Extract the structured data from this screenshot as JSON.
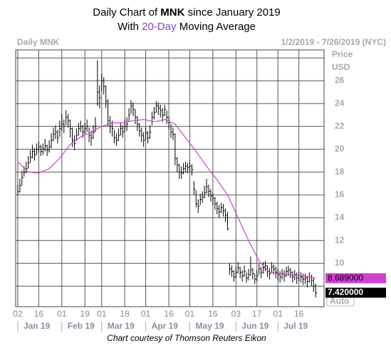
{
  "chart_data": {
    "type": "ohlc",
    "title_parts": [
      "Daily Chart of",
      "MNK",
      "since January 2019"
    ],
    "subtitle_parts": [
      "With",
      "20-Day",
      "Moving Average"
    ],
    "chart_label": "Daily MNK",
    "date_range": "1/2/2019 - 7/26/2019 (NYC)",
    "y_label": [
      "Price",
      "USD"
    ],
    "scale_mode": "Auto",
    "source": "Chart courtesy of Thomson Reuters Eikon",
    "grid": true,
    "xlim": [
      -1,
      146
    ],
    "ylim": [
      6.2,
      28.7
    ],
    "xticks": [
      {
        "value": 0,
        "label": "02"
      },
      {
        "value": 10,
        "label": "16"
      },
      {
        "value": 21,
        "label": "01"
      },
      {
        "value": 32,
        "label": "19"
      },
      {
        "value": 40,
        "label": "01"
      },
      {
        "value": 51,
        "label": "18"
      },
      {
        "value": 61,
        "label": "01"
      },
      {
        "value": 72,
        "label": "16"
      },
      {
        "value": 82,
        "label": "01"
      },
      {
        "value": 93,
        "label": "16"
      },
      {
        "value": 104,
        "label": "03"
      },
      {
        "value": 114,
        "label": "17"
      },
      {
        "value": 124,
        "label": "01"
      },
      {
        "value": 134,
        "label": "16"
      }
    ],
    "month_labels": [
      {
        "value": 0,
        "label": "Jan 19"
      },
      {
        "value": 21,
        "label": "Feb 19"
      },
      {
        "value": 40,
        "label": "Mar 19"
      },
      {
        "value": 61,
        "label": "Apr 19"
      },
      {
        "value": 82,
        "label": "May 19"
      },
      {
        "value": 104,
        "label": "Jun 19"
      },
      {
        "value": 124,
        "label": "Jul 19"
      }
    ],
    "yticks": [
      {
        "value": 8,
        "label": null
      },
      10,
      12,
      14,
      16,
      18,
      20,
      22,
      24,
      26,
      {
        "value": 28,
        "label": null
      }
    ],
    "series": [
      {
        "color": "#000000",
        "close": [
          16.3,
          16.8,
          17.5,
          18,
          18.3,
          18.8,
          19.3,
          19.8,
          19.5,
          20,
          20.2,
          19.8,
          20,
          20.3,
          19.9,
          20.2,
          20.8,
          21.3,
          21.5,
          21,
          21.8,
          22.2,
          22,
          22.8,
          22.5,
          21.8,
          20.8,
          20.5,
          21.2,
          21.8,
          22,
          21.5,
          21.8,
          22,
          21.2,
          21,
          21.5,
          22,
          25,
          24.5,
          26,
          25.5,
          24.2,
          22.5,
          22,
          21.8,
          21,
          20.8,
          21.2,
          21.8,
          21.5,
          22,
          22.2,
          23,
          23.8,
          23.5,
          22.8,
          22.2,
          21.6,
          21.2,
          20.8,
          21.4,
          21,
          21.5,
          22.8,
          23.2,
          23.8,
          23.6,
          23.4,
          23,
          23.5,
          22.8,
          22.3,
          21.5,
          21.3,
          19.2,
          18.6,
          18,
          17.9,
          18.3,
          18.5,
          18.4,
          18.5,
          18.2,
          16.5,
          15.2,
          15,
          15.6,
          15.8,
          16.2,
          16.7,
          16.3,
          15.9,
          15.7,
          15.2,
          14.8,
          14.5,
          14.9,
          14.6,
          14.2,
          13,
          9.5,
          9.3,
          8.8,
          9.2,
          9.6,
          9.2,
          8.9,
          9.3,
          8.7,
          9.0,
          9.4,
          9.1,
          8.6,
          8.9,
          9.5,
          9.2,
          9.6,
          9.8,
          9.3,
          9.1,
          9.7,
          9.5,
          9.2,
          9.0,
          8.8,
          9.1,
          8.9,
          9.3,
          9.4,
          9.2,
          8.8,
          9.0,
          8.7,
          8.9,
          8.8,
          8.6,
          8.7,
          8.4,
          8.8,
          8.5,
          8.0,
          7.42
        ],
        "high": [
          16.9,
          17.4,
          18.1,
          18.5,
          18.9,
          19.4,
          19.9,
          20.4,
          20.1,
          20.5,
          20.7,
          20.4,
          20.5,
          20.9,
          20.4,
          20.8,
          21.4,
          21.9,
          22.1,
          21.7,
          22.5,
          23.1,
          22.6,
          23.4,
          23.1,
          22.6,
          21.9,
          21.2,
          21.8,
          22.3,
          22.5,
          22.1,
          22.3,
          22.6,
          21.9,
          21.6,
          22.1,
          22.8,
          27.8,
          25.6,
          26.6,
          26.3,
          25.6,
          24.4,
          22.9,
          22.5,
          21.7,
          21.4,
          21.8,
          22.3,
          22.1,
          22.6,
          22.8,
          23.6,
          24.3,
          24.1,
          23.5,
          22.9,
          22.3,
          21.9,
          21.5,
          21.9,
          21.6,
          22.1,
          23.3,
          23.7,
          24.2,
          24.1,
          23.9,
          23.6,
          23.9,
          23.4,
          22.9,
          22.2,
          21.9,
          21.4,
          19.3,
          18.7,
          18.5,
          18.8,
          18.9,
          18.8,
          18.9,
          18.7,
          17.2,
          16.4,
          15.6,
          16.1,
          16.3,
          16.8,
          17.4,
          16.9,
          16.5,
          16.2,
          15.8,
          15.4,
          15.1,
          15.3,
          15.2,
          14.8,
          14.5,
          10.0,
          9.8,
          9.4,
          9.7,
          10.1,
          9.7,
          9.4,
          9.8,
          9.2,
          9.5,
          10.6,
          9.6,
          9.1,
          9.4,
          10.0,
          9.7,
          10.1,
          10.2,
          9.8,
          9.6,
          10.1,
          9.9,
          9.7,
          9.5,
          9.3,
          9.5,
          9.4,
          9.7,
          9.8,
          9.6,
          9.3,
          9.4,
          9.2,
          9.3,
          9.2,
          9.1,
          9.1,
          8.9,
          9.2,
          9.0,
          8.7,
          8.2
        ],
        "low": [
          16.0,
          16.2,
          16.8,
          17.6,
          17.9,
          18.3,
          18.8,
          19.2,
          19.0,
          19.5,
          19.7,
          19.4,
          19.5,
          19.8,
          19.4,
          19.7,
          20.1,
          20.7,
          20.9,
          20.5,
          21.1,
          21.6,
          21.4,
          22.1,
          21.9,
          21.0,
          20.2,
          19.9,
          20.7,
          21.2,
          21.5,
          21.0,
          21.3,
          21.5,
          20.6,
          20.3,
          20.9,
          21.5,
          23.8,
          23.6,
          25.1,
          24.8,
          23.6,
          22.0,
          21.4,
          21.1,
          20.5,
          20.3,
          20.7,
          21.2,
          21.0,
          21.5,
          21.6,
          22.4,
          23.1,
          22.9,
          22.2,
          21.6,
          21.1,
          20.6,
          20.2,
          20.8,
          20.5,
          20.9,
          22.1,
          22.6,
          23.2,
          23.0,
          22.8,
          22.4,
          22.9,
          22.2,
          21.7,
          21.0,
          20.8,
          18.6,
          18.0,
          17.4,
          17.4,
          17.8,
          18.0,
          17.9,
          18.0,
          17.7,
          16.0,
          14.9,
          14.4,
          15.1,
          15.3,
          15.7,
          16.1,
          15.8,
          15.4,
          15.1,
          14.7,
          14.3,
          14.0,
          14.4,
          14.1,
          13.6,
          12.9,
          9.0,
          8.8,
          8.4,
          8.7,
          9.1,
          8.7,
          8.4,
          8.8,
          8.3,
          8.5,
          8.9,
          8.6,
          8.2,
          8.4,
          9.0,
          8.7,
          9.1,
          9.3,
          8.8,
          8.6,
          9.2,
          9.0,
          8.7,
          8.5,
          8.3,
          8.6,
          8.4,
          8.8,
          8.9,
          8.7,
          8.3,
          8.5,
          8.2,
          8.4,
          8.3,
          8.1,
          8.2,
          7.9,
          8.3,
          8.0,
          7.5,
          7.0
        ],
        "last_value_label": "7.420000"
      },
      {
        "color": "#d23fd2",
        "x": [
          0,
          5,
          10,
          15,
          20,
          25,
          30,
          35,
          40,
          45,
          50,
          55,
          60,
          65,
          70,
          75,
          80,
          85,
          90,
          95,
          100,
          105,
          110,
          115,
          120,
          125,
          130,
          135,
          140,
          142
        ],
        "values": [
          18.9,
          18.0,
          17.9,
          18.3,
          19.2,
          20.4,
          21.1,
          21.5,
          22.0,
          22.3,
          22.3,
          22.5,
          22.6,
          22.4,
          22.6,
          22.2,
          21.0,
          19.8,
          18.5,
          17.3,
          16.0,
          14.0,
          12.0,
          10.2,
          9.2,
          9.1,
          9.0,
          8.9,
          8.8,
          8.689
        ],
        "last_value_label": "8.689000"
      }
    ]
  }
}
